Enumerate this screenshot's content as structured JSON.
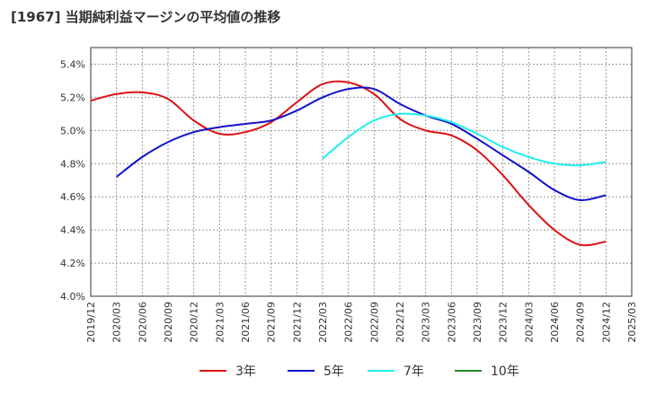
{
  "chart_data": {
    "type": "line",
    "title": "[1967]  当期純利益マージンの平均値の推移",
    "xlabel": "",
    "ylabel": "",
    "grid": true,
    "legend_placement": "bottom",
    "x_ticks": [
      "2019/12",
      "2020/03",
      "2020/06",
      "2020/09",
      "2020/12",
      "2021/03",
      "2021/06",
      "2021/09",
      "2021/12",
      "2022/03",
      "2022/06",
      "2022/09",
      "2022/12",
      "2023/03",
      "2023/06",
      "2023/09",
      "2023/12",
      "2024/03",
      "2024/06",
      "2024/09",
      "2024/12",
      "2025/03"
    ],
    "y_ticks": [
      "4.0%",
      "4.2%",
      "4.4%",
      "4.6%",
      "4.8%",
      "5.0%",
      "5.2%",
      "5.4%"
    ],
    "ylim": [
      4.0,
      5.5
    ],
    "series": [
      {
        "name": "3年",
        "color": "#dd1111",
        "x": [
          "2019/12",
          "2020/03",
          "2020/06",
          "2020/09",
          "2020/12",
          "2021/03",
          "2021/06",
          "2021/09",
          "2021/12",
          "2022/03",
          "2022/06",
          "2022/09",
          "2022/12",
          "2023/03",
          "2023/06",
          "2023/09",
          "2023/12",
          "2024/03",
          "2024/06",
          "2024/09",
          "2024/12"
        ],
        "values": [
          5.18,
          5.22,
          5.23,
          5.19,
          5.06,
          4.98,
          4.99,
          5.05,
          5.17,
          5.28,
          5.29,
          5.22,
          5.07,
          5.0,
          4.97,
          4.88,
          4.73,
          4.55,
          4.4,
          4.31,
          4.33
        ]
      },
      {
        "name": "5年",
        "color": "#1111cc",
        "x": [
          "2020/03",
          "2020/06",
          "2020/09",
          "2020/12",
          "2021/03",
          "2021/06",
          "2021/09",
          "2021/12",
          "2022/03",
          "2022/06",
          "2022/09",
          "2022/12",
          "2023/03",
          "2023/06",
          "2023/09",
          "2023/12",
          "2024/03",
          "2024/06",
          "2024/09",
          "2024/12"
        ],
        "values": [
          4.72,
          4.84,
          4.93,
          4.99,
          5.02,
          5.04,
          5.06,
          5.12,
          5.2,
          5.25,
          5.25,
          5.16,
          5.09,
          5.04,
          4.95,
          4.85,
          4.75,
          4.64,
          4.58,
          4.61
        ]
      },
      {
        "name": "7年",
        "color": "#22eeee",
        "x": [
          "2022/03",
          "2022/06",
          "2022/09",
          "2022/12",
          "2023/03",
          "2023/06",
          "2023/09",
          "2023/12",
          "2024/03",
          "2024/06",
          "2024/09",
          "2024/12"
        ],
        "values": [
          4.83,
          4.96,
          5.06,
          5.1,
          5.09,
          5.05,
          4.98,
          4.9,
          4.84,
          4.8,
          4.79,
          4.81
        ]
      },
      {
        "name": "10年",
        "color": "#228822",
        "x": [],
        "values": []
      }
    ]
  }
}
